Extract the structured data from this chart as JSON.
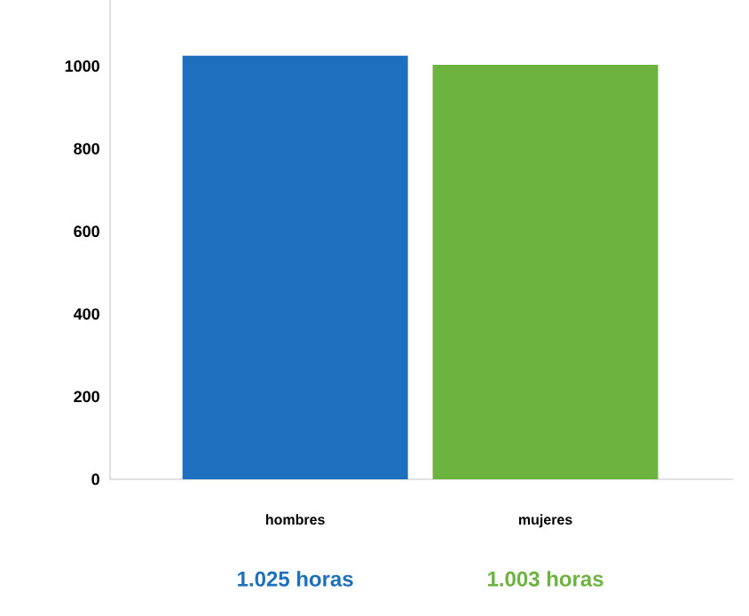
{
  "chart_data": {
    "type": "bar",
    "categories": [
      "hombres",
      "mujeres"
    ],
    "values": [
      1025,
      1003
    ],
    "colors": [
      "#1e70bf",
      "#6db33f"
    ],
    "value_labels": [
      "1.025 horas",
      "1.003 horas"
    ],
    "ylim": [
      0,
      1160
    ],
    "yticks": [
      0,
      200,
      400,
      600,
      800,
      1000
    ]
  }
}
